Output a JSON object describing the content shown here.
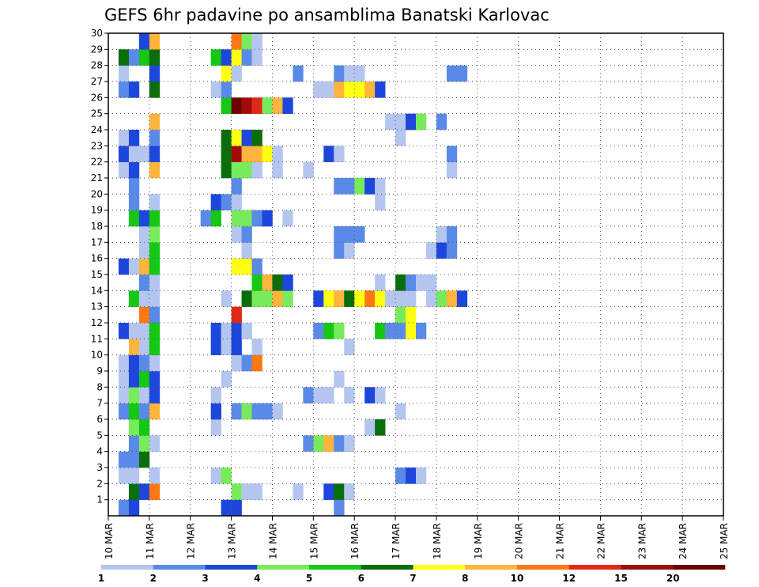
{
  "chart_data": {
    "type": "heatmap",
    "title": "GEFS 6hr padavine po ansamblima Banatski Karlovac",
    "x_tick_labels": [
      "10 MAR",
      "11 MAR",
      "12 MAR",
      "13 MAR",
      "14 MAR",
      "15 MAR",
      "16 MAR",
      "17 MAR",
      "18 MAR",
      "19 MAR",
      "20 MAR",
      "21 MAR",
      "22 MAR",
      "23 MAR",
      "24 MAR",
      "25 MAR"
    ],
    "y_tick_labels": [
      "1",
      "2",
      "3",
      "4",
      "5",
      "6",
      "7",
      "8",
      "9",
      "10",
      "11",
      "12",
      "13",
      "14",
      "15",
      "16",
      "17",
      "18",
      "19",
      "20",
      "21",
      "22",
      "23",
      "24",
      "25",
      "26",
      "27",
      "28",
      "29",
      "30"
    ],
    "x_range_days": [
      10,
      25
    ],
    "y_range": [
      0,
      30
    ],
    "grid": "dotted",
    "colorbar": {
      "levels": [
        "1",
        "2",
        "3",
        "4",
        "5",
        "6",
        "7",
        "8",
        "10",
        "12",
        "15",
        "20"
      ],
      "colors": [
        "#b4c6f0",
        "#5a8ae8",
        "#1c46dc",
        "#78eb5a",
        "#14c814",
        "#0a6e0a",
        "#ffff14",
        "#ffb43c",
        "#ff7814",
        "#e12814",
        "#a00a0a",
        "#6e0000"
      ]
    },
    "cell_width_days": 0.25,
    "cell_count": 205
  }
}
